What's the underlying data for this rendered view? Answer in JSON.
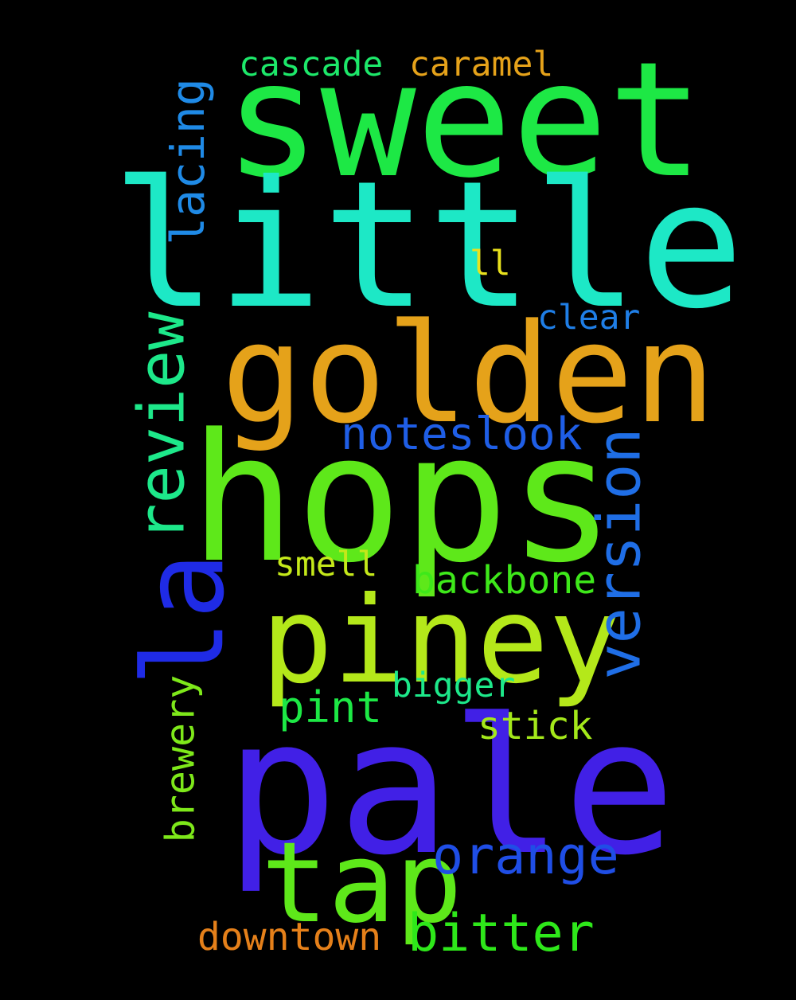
{
  "background": "#000000",
  "words": [
    {
      "text": "sweet",
      "color": "#1de845"
    },
    {
      "text": "little",
      "color": "#1de8c6"
    },
    {
      "text": "golden",
      "color": "#e5a21a"
    },
    {
      "text": "hops",
      "color": "#5ee81a"
    },
    {
      "text": "piney",
      "color": "#b4e81a"
    },
    {
      "text": "pale",
      "color": "#4120e6"
    },
    {
      "text": "tap",
      "color": "#5ee81a"
    },
    {
      "text": "la",
      "color": "#1f2be6"
    },
    {
      "text": "review",
      "color": "#1de88a"
    },
    {
      "text": "version",
      "color": "#1f6ee6"
    },
    {
      "text": "lacing",
      "color": "#1f8ae6"
    },
    {
      "text": "noteslook",
      "color": "#1f5ee6"
    },
    {
      "text": "cascade",
      "color": "#1de86a"
    },
    {
      "text": "caramel",
      "color": "#e5a21a"
    },
    {
      "text": "ll",
      "color": "#e8e11d"
    },
    {
      "text": "clear",
      "color": "#1f7ee6"
    },
    {
      "text": "smell",
      "color": "#c4e81a"
    },
    {
      "text": "backbone",
      "color": "#3ee81a"
    },
    {
      "text": "bigger",
      "color": "#1de88a"
    },
    {
      "text": "pint",
      "color": "#1de845"
    },
    {
      "text": "stick",
      "color": "#a4e81a"
    },
    {
      "text": "brewery",
      "color": "#7ee81a"
    },
    {
      "text": "orange",
      "color": "#1f4ee6"
    },
    {
      "text": "bitter",
      "color": "#2ee81a"
    },
    {
      "text": "downtown",
      "color": "#e5801a"
    }
  ]
}
